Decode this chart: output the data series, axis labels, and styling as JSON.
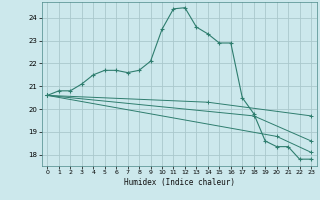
{
  "xlabel": "Humidex (Indice chaleur)",
  "bg_color": "#cce8ec",
  "grid_color": "#aac8cc",
  "line_color": "#2e7d6e",
  "xlim": [
    -0.5,
    23.5
  ],
  "ylim": [
    17.5,
    24.7
  ],
  "yticks": [
    18,
    19,
    20,
    21,
    22,
    23,
    24
  ],
  "xticks": [
    0,
    1,
    2,
    3,
    4,
    5,
    6,
    7,
    8,
    9,
    10,
    11,
    12,
    13,
    14,
    15,
    16,
    17,
    18,
    19,
    20,
    21,
    22,
    23
  ],
  "line1_x": [
    0,
    1,
    2,
    3,
    4,
    5,
    6,
    7,
    8,
    9,
    10,
    11,
    12,
    13,
    14,
    15,
    16,
    17,
    18,
    19,
    20,
    21,
    22,
    23
  ],
  "line1_y": [
    20.6,
    20.8,
    20.8,
    21.1,
    21.5,
    21.7,
    21.7,
    21.6,
    21.7,
    22.1,
    23.5,
    24.4,
    24.45,
    23.6,
    23.3,
    22.9,
    22.9,
    20.5,
    19.8,
    18.6,
    18.35,
    18.35,
    17.8,
    17.8
  ],
  "line2_x": [
    0,
    14,
    23
  ],
  "line2_y": [
    20.6,
    20.3,
    19.7
  ],
  "line3_x": [
    0,
    18,
    23
  ],
  "line3_y": [
    20.6,
    19.7,
    18.6
  ],
  "line4_x": [
    0,
    20,
    23
  ],
  "line4_y": [
    20.6,
    18.8,
    18.1
  ]
}
